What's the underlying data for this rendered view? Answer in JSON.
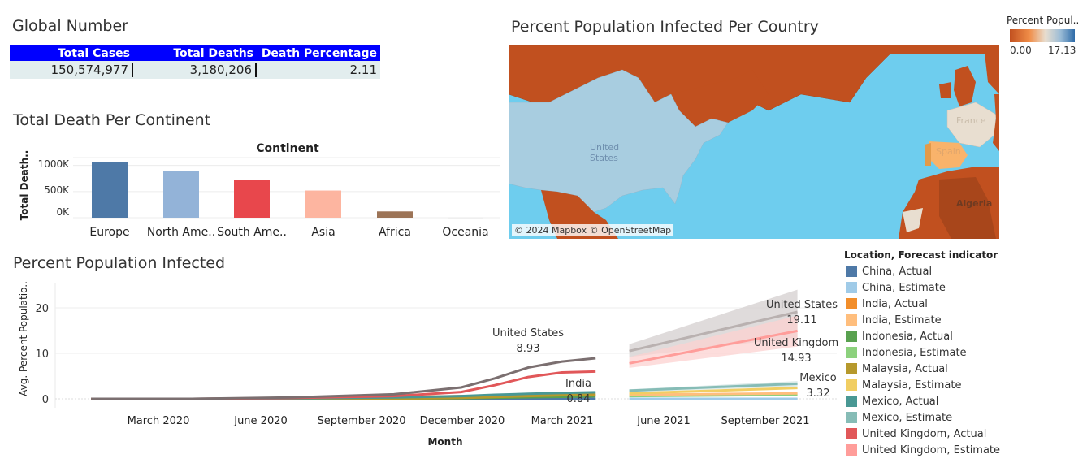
{
  "global": {
    "title": "Global Number",
    "headers": [
      "Total Cases",
      "Total Deaths",
      "Death Percentage"
    ],
    "values": [
      "150,574,977",
      "3,180,206",
      "2.11"
    ]
  },
  "continent": {
    "title": "Total Death Per Continent",
    "chart_title": "Continent",
    "ylabel": "Total Death..",
    "ticks": [
      "1000K",
      "500K",
      "0K"
    ],
    "categories": [
      "Europe",
      "North Ame..",
      "South Ame..",
      "Asia",
      "Africa",
      "Oceania"
    ]
  },
  "map": {
    "title": "Percent Population Infected Per Country",
    "credit": "© 2024 Mapbox © OpenStreetMap",
    "labels": [
      "United States",
      "France",
      "Spain",
      "Algeria"
    ],
    "legend_title": "Percent Popul..",
    "legend_min": "0.00",
    "legend_max": "17.13",
    "colors": {
      "low": "#c1501f",
      "mid": "#e8ded0",
      "high": "#2e6ba8",
      "water": "#6ecdee"
    }
  },
  "infected": {
    "title": "Percent Population Infected",
    "ylabel": "Avg. Percent Populatio..",
    "xlabel": "Month",
    "yticks": [
      "20",
      "10",
      "0"
    ],
    "xticks": [
      "March 2020",
      "June 2020",
      "September 2020",
      "December 2020",
      "March 2021",
      "June 2021",
      "September 2021"
    ],
    "annotations": [
      {
        "name": "United States",
        "value": "8.93"
      },
      {
        "name": "India",
        "value": "0.84"
      },
      {
        "name": "United States",
        "value": "19.11"
      },
      {
        "name": "United Kingdom",
        "value": "14.93"
      },
      {
        "name": "Mexico",
        "value": "3.32"
      }
    ]
  },
  "legend": {
    "title": "Location, Forecast indicator",
    "items": [
      {
        "label": "China, Actual",
        "color": "#4e79a7"
      },
      {
        "label": "China, Estimate",
        "color": "#a0cbe8"
      },
      {
        "label": "India, Actual",
        "color": "#f28e2b"
      },
      {
        "label": "India, Estimate",
        "color": "#ffbe7d"
      },
      {
        "label": "Indonesia, Actual",
        "color": "#59a14f"
      },
      {
        "label": "Indonesia, Estimate",
        "color": "#8cd17d"
      },
      {
        "label": "Malaysia, Actual",
        "color": "#b6992d"
      },
      {
        "label": "Malaysia, Estimate",
        "color": "#f1ce63"
      },
      {
        "label": "Mexico, Actual",
        "color": "#499894"
      },
      {
        "label": "Mexico, Estimate",
        "color": "#86bcb6"
      },
      {
        "label": "United Kingdom, Actual",
        "color": "#e15759"
      },
      {
        "label": "United Kingdom, Estimate",
        "color": "#ff9d9a"
      }
    ]
  },
  "chart_data": [
    {
      "type": "bar",
      "title": "Continent",
      "xlabel": "Continent",
      "ylabel": "Total Death..",
      "categories": [
        "Europe",
        "North Ame..",
        "South Ame..",
        "Asia",
        "Africa",
        "Oceania"
      ],
      "values": [
        1070000,
        900000,
        720000,
        520000,
        120000,
        1000
      ],
      "colors": [
        "#4e79a7",
        "#93b3d8",
        "#e8474c",
        "#fdb5a0",
        "#9c7457",
        "#dddddd"
      ],
      "ylim": [
        0,
        1150000
      ]
    },
    {
      "type": "line",
      "title": "",
      "xlabel": "Month",
      "ylabel": "Avg. Percent Populatio..",
      "x_actual": [
        "2020-01",
        "2020-04",
        "2020-07",
        "2020-10",
        "2020-12",
        "2021-01",
        "2021-02",
        "2021-03",
        "2021-04"
      ],
      "x_estimate": [
        "2021-05",
        "2021-10"
      ],
      "ylim": [
        -1,
        25
      ],
      "series": [
        {
          "name": "United States",
          "color": "#7b6f70",
          "actual": [
            0,
            0,
            0.3,
            1.0,
            2.5,
            4.5,
            6.9,
            8.2,
            8.93
          ],
          "estimate": [
            10.5,
            19.11
          ],
          "band": [
            [
              9.2,
              12.0
            ],
            [
              13.5,
              24.0
            ]
          ],
          "band_color": "#d4cfcf",
          "est_color": "#b9b1b0"
        },
        {
          "name": "United Kingdom",
          "color": "#e15759",
          "actual": [
            0,
            0,
            0.2,
            0.6,
            1.5,
            3.0,
            4.8,
            5.8,
            6.0
          ],
          "estimate": [
            7.8,
            14.93
          ],
          "band": [
            [
              6.8,
              9.2
            ],
            [
              11.5,
              18.3
            ]
          ],
          "band_color": "#fcd1d0",
          "est_color": "#ff9d9a"
        },
        {
          "name": "Mexico",
          "color": "#499894",
          "actual": [
            0,
            0,
            0.1,
            0.3,
            0.6,
            0.9,
            1.1,
            1.3,
            1.45
          ],
          "estimate": [
            1.8,
            3.32
          ],
          "band": [
            [
              1.5,
              2.1
            ],
            [
              2.7,
              3.9
            ]
          ],
          "band_color": "#cfe3e2",
          "est_color": "#86bcb6"
        },
        {
          "name": "Malaysia",
          "color": "#b6992d",
          "actual": [
            0,
            0,
            0,
            0.05,
            0.2,
            0.4,
            0.6,
            0.8,
            1.05
          ],
          "estimate": [
            1.2,
            2.4
          ],
          "est_color": "#f1ce63"
        },
        {
          "name": "India",
          "color": "#f28e2b",
          "actual": [
            0,
            0,
            0.05,
            0.35,
            0.6,
            0.7,
            0.75,
            0.8,
            0.84
          ],
          "estimate": [
            0.9,
            1.2
          ],
          "est_color": "#ffbe7d"
        },
        {
          "name": "Indonesia",
          "color": "#59a14f",
          "actual": [
            0,
            0,
            0,
            0.05,
            0.15,
            0.25,
            0.35,
            0.45,
            0.55
          ],
          "estimate": [
            0.6,
            0.9
          ],
          "est_color": "#8cd17d"
        },
        {
          "name": "China",
          "color": "#4e79a7",
          "actual": [
            0,
            0,
            0,
            0,
            0,
            0,
            0,
            0,
            0
          ],
          "estimate": [
            0,
            0
          ],
          "est_color": "#a0cbe8"
        }
      ]
    }
  ]
}
